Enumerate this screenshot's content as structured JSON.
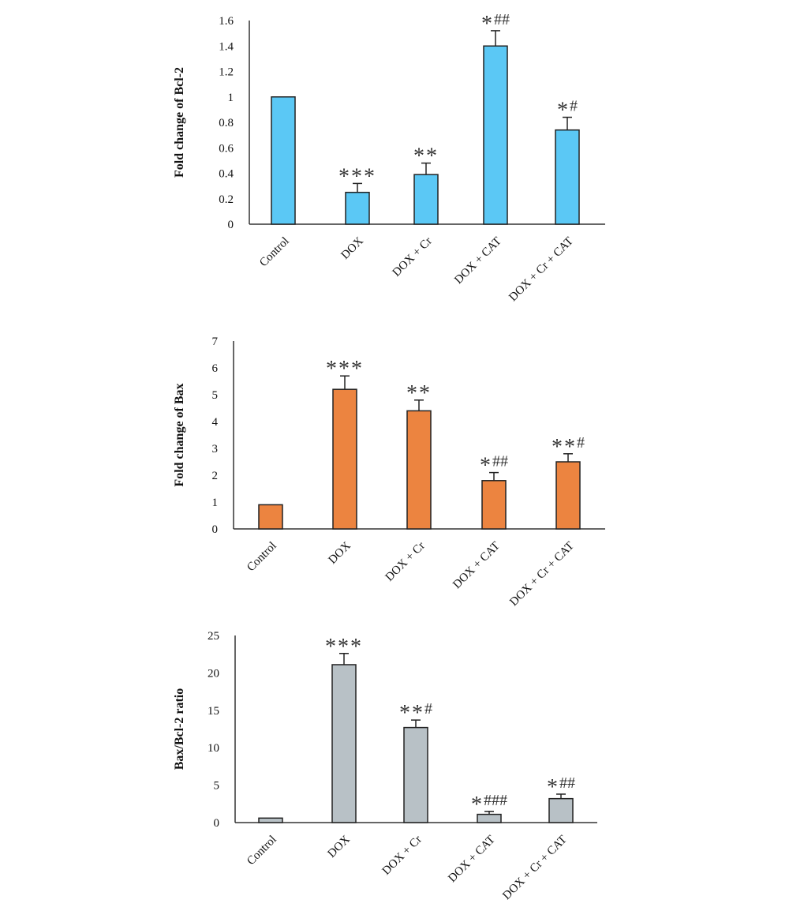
{
  "chart_data": [
    {
      "type": "bar",
      "categories": [
        "Control",
        "DOX",
        "DOX + Cr",
        "DOX + CAT",
        "DOX + Cr + CAT"
      ],
      "values": [
        1.0,
        0.25,
        0.39,
        1.4,
        0.74
      ],
      "errors": [
        0,
        0.07,
        0.09,
        0.12,
        0.1
      ],
      "significance": [
        {
          "stars": "",
          "hashes": ""
        },
        {
          "stars": "***",
          "hashes": ""
        },
        {
          "stars": "**",
          "hashes": ""
        },
        {
          "stars": "*",
          "hashes": "##"
        },
        {
          "stars": "*",
          "hashes": "#"
        }
      ],
      "ylabel": "Fold change of Bcl-2",
      "ylim": [
        0,
        1.6
      ],
      "yticks": [
        "0",
        "0.2",
        "0.4",
        "0.6",
        "0.8",
        "1",
        "1.2",
        "1.4",
        "1.6"
      ],
      "color": "#5bc8f5",
      "grid": false,
      "legend": "none"
    },
    {
      "type": "bar",
      "categories": [
        "Control",
        "DOX",
        "DOX + Cr",
        "DOX + CAT",
        "DOX + Cr + CAT"
      ],
      "values": [
        0.9,
        5.2,
        4.4,
        1.8,
        2.5
      ],
      "errors": [
        0,
        0.5,
        0.4,
        0.3,
        0.3
      ],
      "significance": [
        {
          "stars": "",
          "hashes": ""
        },
        {
          "stars": "***",
          "hashes": ""
        },
        {
          "stars": "**",
          "hashes": ""
        },
        {
          "stars": "*",
          "hashes": "##"
        },
        {
          "stars": "**",
          "hashes": "#"
        }
      ],
      "ylabel": "Fold change of Bax",
      "ylim": [
        0,
        7
      ],
      "yticks": [
        "0",
        "1",
        "2",
        "3",
        "4",
        "5",
        "6",
        "7"
      ],
      "color": "#ec8440",
      "grid": false,
      "legend": "none"
    },
    {
      "type": "bar",
      "categories": [
        "Control",
        "DOX",
        "DOX + Cr",
        "DOX + CAT",
        "DOX + Cr + CAT"
      ],
      "values": [
        0.6,
        21.1,
        12.7,
        1.1,
        3.2
      ],
      "errors": [
        0,
        1.5,
        1.0,
        0.4,
        0.6
      ],
      "significance": [
        {
          "stars": "",
          "hashes": ""
        },
        {
          "stars": "***",
          "hashes": ""
        },
        {
          "stars": "**",
          "hashes": "#"
        },
        {
          "stars": "*",
          "hashes": "###"
        },
        {
          "stars": "*",
          "hashes": "##"
        }
      ],
      "ylabel": "Bax/Bcl-2 ratio",
      "ylim": [
        0,
        25
      ],
      "yticks": [
        "0",
        "5",
        "10",
        "15",
        "20",
        "25"
      ],
      "color": "#b8c1c6",
      "grid": false,
      "legend": "none"
    }
  ]
}
